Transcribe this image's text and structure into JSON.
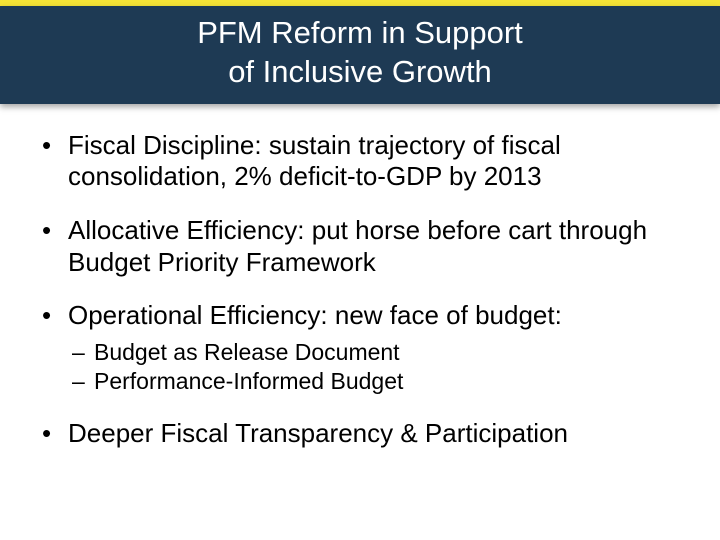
{
  "colors": {
    "accent_bar": "#f6e436",
    "header_bg": "#1e3a54",
    "header_text": "#ffffff",
    "body_bg": "#ffffff",
    "body_text": "#000000"
  },
  "typography": {
    "family": "Arial",
    "title_fontsize_pt": 24,
    "bullet_fontsize_pt": 20,
    "sub_fontsize_pt": 17
  },
  "header": {
    "title_line1": "PFM Reform in Support",
    "title_line2": "of Inclusive Growth"
  },
  "bullets": [
    {
      "text": "Fiscal Discipline: sustain trajectory of fiscal consolidation, 2% deficit-to-GDP by 2013",
      "sub": []
    },
    {
      "text": "Allocative Efficiency: put horse before cart through Budget Priority Framework",
      "sub": []
    },
    {
      "text": "Operational Efficiency: new face of budget:",
      "sub": [
        "Budget as Release Document",
        "Performance-Informed Budget"
      ]
    },
    {
      "text": "Deeper Fiscal Transparency & Participation",
      "sub": []
    }
  ]
}
